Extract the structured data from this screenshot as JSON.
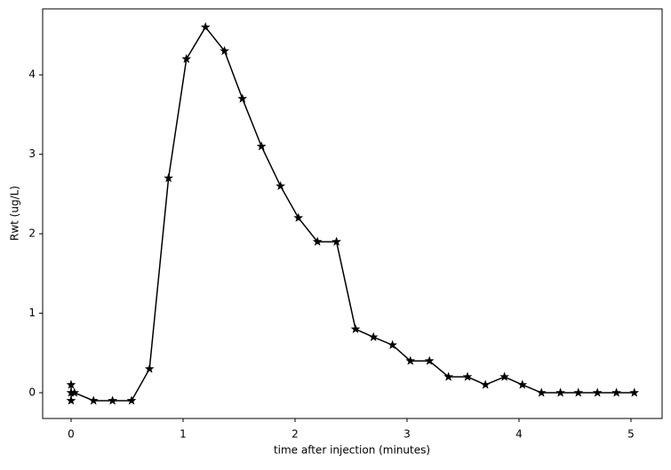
{
  "chart_data": {
    "type": "line",
    "xlabel": "time after injection (minutes)",
    "ylabel": "Rwt (ug/L)",
    "x": [
      0,
      0,
      0,
      0.03,
      0.2,
      0.37,
      0.54,
      0.7,
      0.87,
      1.03,
      1.2,
      1.37,
      1.53,
      1.7,
      1.87,
      2.03,
      2.2,
      2.37,
      2.54,
      2.7,
      2.87,
      3.03,
      3.2,
      3.37,
      3.54,
      3.7,
      3.87,
      4.03,
      4.2,
      4.37,
      4.53,
      4.7,
      4.87,
      5.03
    ],
    "series": [
      {
        "color": "#000000",
        "marker": "star",
        "values": [
          0.1,
          -0.1,
          0,
          0,
          -0.1,
          -0.1,
          -0.1,
          0.3,
          2.7,
          4.2,
          4.6,
          4.3,
          3.7,
          3.1,
          2.6,
          2.2,
          1.9,
          1.9,
          0.8,
          0.7,
          0.6,
          0.4,
          0.4,
          0.2,
          0.2,
          0.1,
          0.2,
          0.1,
          0,
          0,
          0,
          0,
          0,
          0
        ]
      }
    ],
    "xlim": [
      -0.254,
      5.278
    ],
    "ylim": [
      -0.324,
      4.83
    ],
    "xticks": [
      0,
      1,
      2,
      3,
      4,
      5
    ],
    "yticks": [
      0,
      1,
      2,
      3,
      4
    ],
    "grid": false
  }
}
